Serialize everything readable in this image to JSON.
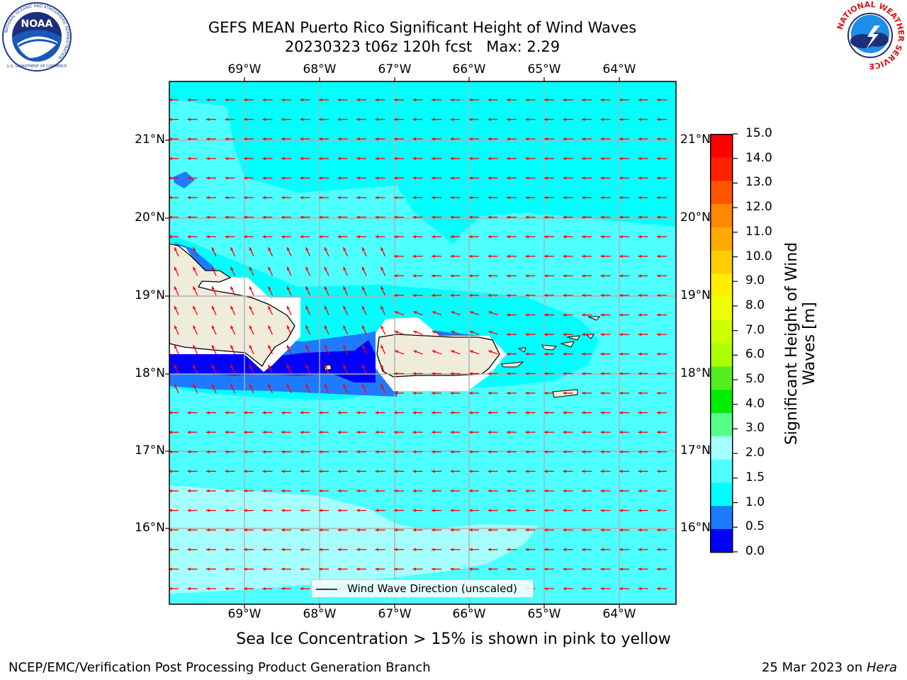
{
  "header": {
    "title_line1": "GEFS MEAN Puerto Rico Significant Height of Wind Waves",
    "title_line2": "20230323 t06z 120h fcst   Max: 2.29"
  },
  "logos": {
    "noaa_text": "NOAA",
    "noaa_ring_text": "NATIONAL OCEANIC AND ATMOSPHERIC ADMINISTRATION",
    "noaa_bottom_text": "U.S. DEPARTMENT OF COMMERCE",
    "nws_ring_text": "NATIONAL WEATHER SERVICE"
  },
  "map": {
    "lon_labels": [
      "69°W",
      "68°W",
      "67°W",
      "66°W",
      "65°W",
      "64°W"
    ],
    "lat_labels": [
      "21°N",
      "20°N",
      "19°N",
      "18°N",
      "17°N",
      "16°N"
    ],
    "legend_label": "Wind Wave Direction (unscaled)",
    "colors": {
      "ocean_1_0_1_5": "#00ffff",
      "ocean_1_5_2_0": "#4dffff",
      "ocean_2_0_3_0": "#a6ffff",
      "ocean_0_5_1_0": "#1e7bff",
      "ocean_0_0_0_5": "#0000ff",
      "land": "#efecdc",
      "arrow": "#ff0000"
    }
  },
  "colorbar": {
    "label": "Significant Height of Wind Waves [m]",
    "label_line1": "Significant Height of Wind",
    "label_line2": "Waves [m]",
    "ticks": [
      "15.0",
      "14.0",
      "13.0",
      "12.0",
      "11.0",
      "10.0",
      "9.0",
      "8.0",
      "7.0",
      "6.0",
      "5.0",
      "4.0",
      "3.0",
      "2.0",
      "1.5",
      "1.0",
      "0.5",
      "0.0"
    ],
    "colors_top_to_bottom": [
      "#ff0000",
      "#ff2200",
      "#ff5500",
      "#ff8800",
      "#ffaa00",
      "#ffcc00",
      "#ffee00",
      "#eeff00",
      "#ccff00",
      "#aaff00",
      "#55ee22",
      "#00ee00",
      "#55ff88",
      "#a6ffff",
      "#4dffff",
      "#00ffff",
      "#1e7bff",
      "#0000ff"
    ]
  },
  "caption": "Sea Ice Concentration > 15% is shown in pink to yellow",
  "footer": {
    "left": "NCEP/EMC/Verification Post Processing Product Generation Branch",
    "right_prefix": "25 Mar 2023 on ",
    "right_host": "Hera"
  }
}
